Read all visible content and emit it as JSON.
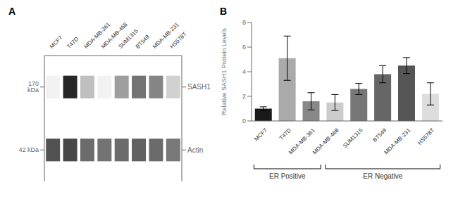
{
  "chart_data": [
    {
      "type": "heatmap",
      "title": "A",
      "categories": [
        "MCF7",
        "T47D",
        "MDA-MB-361",
        "MDA-MB-468",
        "SUM1315",
        "BT549",
        "MDA-MB-231",
        "HS578T"
      ],
      "rows": [
        "SASH1",
        "Actin"
      ],
      "annotations": [
        "170 kDa",
        "42 kDa"
      ],
      "values": [
        [
          0.05,
          0.85,
          0.25,
          0.05,
          0.38,
          0.55,
          0.48,
          0.18
        ],
        [
          0.68,
          0.72,
          0.58,
          0.55,
          0.58,
          0.62,
          0.58,
          0.53
        ]
      ],
      "grid": false
    },
    {
      "type": "bar",
      "title": "B",
      "categories": [
        "MCF7",
        "T47D",
        "MDA-MB-361",
        "MDA-MB-468",
        "SUM1315",
        "BT549",
        "MDA-MB-231",
        "HS578T"
      ],
      "values": [
        1.0,
        5.1,
        1.6,
        1.5,
        2.6,
        3.8,
        4.5,
        2.2
      ],
      "errors": [
        0.15,
        1.8,
        0.7,
        0.65,
        0.45,
        0.7,
        0.65,
        0.9
      ],
      "colors": [
        "#1a1a1a",
        "#aaaaaa",
        "#888888",
        "#cccccc",
        "#777777",
        "#666666",
        "#555555",
        "#dddddd"
      ],
      "y_label": "Relative SASH1 Protein Levels",
      "ylim": [
        0,
        8
      ],
      "yticks": [
        0,
        2,
        4,
        6,
        8
      ],
      "annotations": [
        {
          "text": "ER Positive",
          "from": "MCF7",
          "to": "MDA-MB-361"
        },
        {
          "text": "ER Negative",
          "from": "MDA-MB-468",
          "to": "HS578T"
        }
      ],
      "grid": false
    }
  ]
}
